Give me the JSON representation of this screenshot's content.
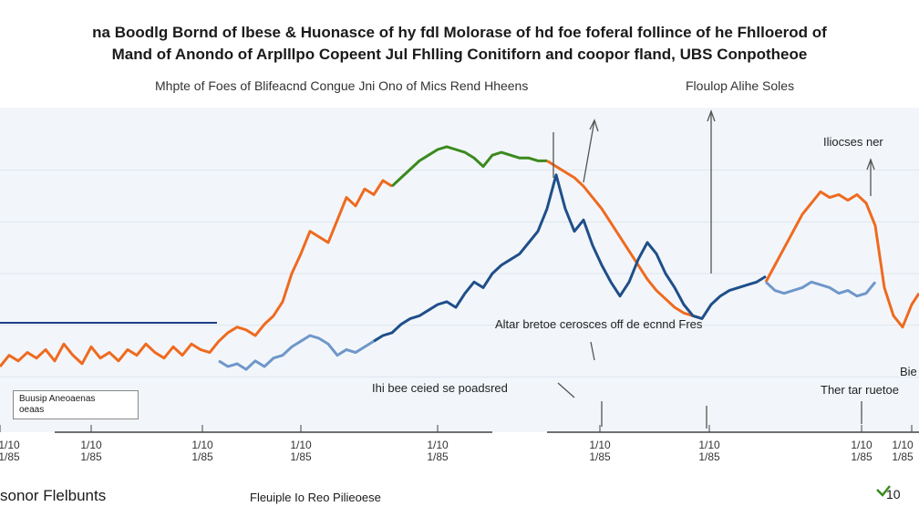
{
  "chart_data": {
    "type": "line",
    "title": "na Boodlg Bornd of lbese & Huonasce of hy fdl Molorase of hd foe foferal follince of he Fhlloerod of",
    "subtitle": "Mand of Anondo of Arplllpo Copeent Jul Fhlling Conitiforn and coopor fland, UBS Conpotheoe",
    "legend": [
      "Mhpte of Foes of Blifeacnd Congue Jni Ono of Mics Rend Hheens",
      "Floulop Alihe Soles"
    ],
    "x_tick_labels": [
      [
        "1/10",
        "1/85"
      ],
      [
        "1/10",
        "1/85"
      ],
      [
        "1/10",
        "1/85"
      ],
      [
        "1/10",
        "1/85"
      ],
      [
        "1/10",
        "1/85"
      ],
      [
        "1/10",
        "1/85"
      ],
      [
        "1/10",
        "1/85"
      ],
      [
        "1/10",
        "1/85"
      ],
      [
        "1/10",
        "1/85"
      ]
    ],
    "annotations": {
      "top_right": "Iliocses ner",
      "middle": "Altar bretoe cerosces off de ecnnd Fres",
      "lower_mid": "Ihi bee ceied se poadsred",
      "right_a": "Bie",
      "right_b": "Ther tar ruetoe"
    },
    "inset_box": [
      "Buusip Aneoaenas",
      "oeaas"
    ],
    "footer_left": "sonor  Flelbunts",
    "footer_center": "Fleuiple Io Reo Pilieoese",
    "footer_right": "10",
    "series": [
      {
        "color": "#ef6a1f",
        "x": [
          0,
          10,
          20,
          30,
          40,
          50,
          60,
          70,
          80,
          90,
          100,
          110,
          120,
          130,
          140,
          150,
          160,
          170,
          180,
          190,
          200,
          210,
          220,
          230,
          240,
          250,
          260,
          270,
          280,
          290,
          300,
          310,
          320,
          330,
          340,
          350,
          360,
          370,
          380,
          390,
          400,
          410,
          420,
          430
        ],
        "y": [
          22,
          26,
          24,
          27,
          25,
          28,
          24,
          30,
          26,
          23,
          29,
          25,
          27,
          24,
          28,
          26,
          30,
          27,
          25,
          29,
          26,
          30,
          28,
          27,
          31,
          34,
          36,
          35,
          33,
          37,
          40,
          45,
          55,
          62,
          70,
          68,
          66,
          74,
          82,
          79,
          85,
          83,
          88,
          86
        ]
      },
      {
        "color": "#3b8a1e",
        "x": [
          430,
          440,
          450,
          460,
          470,
          480,
          490,
          500,
          510,
          520,
          530,
          540,
          550,
          560,
          570,
          580,
          590,
          600
        ],
        "y": [
          86,
          89,
          92,
          95,
          97,
          99,
          100,
          99,
          98,
          96,
          93,
          97,
          98,
          97,
          96,
          96,
          95,
          95
        ]
      },
      {
        "color": "#ef6a1f",
        "x": [
          600,
          610,
          620,
          630,
          640,
          650,
          660,
          670,
          680,
          690,
          700,
          710,
          720,
          730,
          740,
          750,
          760,
          770
        ],
        "y": [
          95,
          93,
          91,
          89,
          86,
          82,
          78,
          73,
          68,
          63,
          58,
          53,
          49,
          46,
          43,
          41,
          40,
          39
        ]
      },
      {
        "color": "#1f4f8a",
        "x": [
          410,
          420,
          430,
          440,
          450,
          460,
          470,
          480,
          490,
          500,
          510,
          520,
          530,
          540,
          550,
          560,
          570,
          580,
          590,
          600,
          610,
          620,
          630,
          640,
          650,
          660,
          670,
          680,
          690,
          700,
          710,
          720,
          730,
          740,
          750,
          760,
          770,
          780,
          790,
          800,
          810,
          820,
          830,
          840
        ],
        "y": [
          31,
          33,
          34,
          37,
          39,
          40,
          42,
          44,
          45,
          43,
          48,
          52,
          50,
          55,
          58,
          60,
          62,
          66,
          70,
          78,
          90,
          78,
          70,
          74,
          65,
          58,
          52,
          47,
          52,
          60,
          66,
          62,
          55,
          50,
          44,
          40,
          39,
          44,
          47,
          49,
          50,
          51,
          52,
          54
        ]
      },
      {
        "color": "#6f97c9",
        "x": [
          240,
          250,
          260,
          270,
          280,
          290,
          300,
          310,
          320,
          330,
          340,
          350,
          360,
          370,
          380,
          390,
          400,
          410
        ],
        "y": [
          24,
          22,
          23,
          21,
          24,
          22,
          25,
          26,
          29,
          31,
          33,
          32,
          30,
          26,
          28,
          27,
          29,
          31
        ]
      },
      {
        "color": "#ef6a1f",
        "x": [
          840,
          850,
          860,
          870,
          880,
          890,
          900,
          910,
          920,
          930,
          940,
          950,
          960,
          970,
          980,
          990,
          1000,
          1008
        ],
        "y": [
          52,
          58,
          64,
          70,
          76,
          80,
          84,
          82,
          83,
          81,
          83,
          80,
          72,
          50,
          40,
          36,
          44,
          48
        ]
      },
      {
        "color": "#6f97c9",
        "x": [
          840,
          850,
          860,
          870,
          880,
          890,
          900,
          910,
          920,
          930,
          940,
          950,
          960
        ],
        "y": [
          52,
          49,
          48,
          49,
          50,
          52,
          51,
          50,
          48,
          49,
          47,
          48,
          52
        ]
      }
    ],
    "ylim": [
      0,
      110
    ],
    "xlim": [
      0,
      1008
    ]
  }
}
